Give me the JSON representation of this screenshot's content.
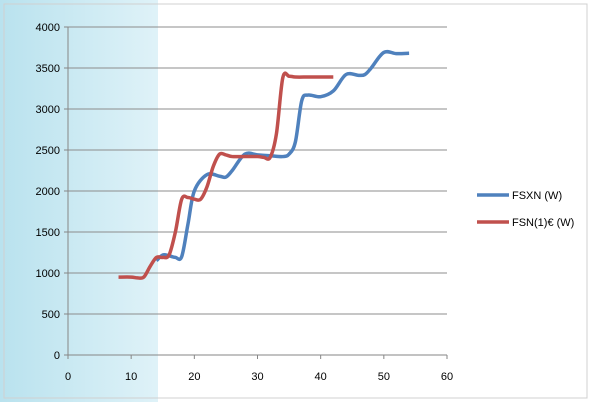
{
  "chart_data": {
    "type": "line",
    "title": "",
    "xlabel": "",
    "ylabel": "",
    "xlim": [
      0,
      60
    ],
    "ylim": [
      0,
      4000
    ],
    "x_ticks": [
      0,
      10,
      20,
      30,
      40,
      50,
      60
    ],
    "y_ticks": [
      0,
      500,
      1000,
      1500,
      2000,
      2500,
      3000,
      3500,
      4000
    ],
    "grid": "horizontal",
    "legend_position": "right",
    "series": [
      {
        "name": "FSXN (W)",
        "color": "#4f81bd",
        "points": [
          [
            14,
            1150
          ],
          [
            15,
            1220
          ],
          [
            16,
            1210
          ],
          [
            17,
            1190
          ],
          [
            18,
            1200
          ],
          [
            19,
            1600
          ],
          [
            20,
            2000
          ],
          [
            22,
            2200
          ],
          [
            24,
            2180
          ],
          [
            25,
            2170
          ],
          [
            26,
            2250
          ],
          [
            28,
            2450
          ],
          [
            30,
            2440
          ],
          [
            32,
            2430
          ],
          [
            34,
            2420
          ],
          [
            35,
            2450
          ],
          [
            36,
            2600
          ],
          [
            37,
            3100
          ],
          [
            38,
            3170
          ],
          [
            40,
            3150
          ],
          [
            42,
            3220
          ],
          [
            44,
            3420
          ],
          [
            46,
            3410
          ],
          [
            47,
            3420
          ],
          [
            48,
            3500
          ],
          [
            50,
            3690
          ],
          [
            52,
            3675
          ],
          [
            54,
            3680
          ]
        ]
      },
      {
        "name": "FSN(1)€ (W)",
        "color": "#c0504d",
        "points": [
          [
            8,
            950
          ],
          [
            10,
            950
          ],
          [
            11,
            940
          ],
          [
            12,
            950
          ],
          [
            13,
            1080
          ],
          [
            14,
            1190
          ],
          [
            15,
            1190
          ],
          [
            16,
            1220
          ],
          [
            17,
            1500
          ],
          [
            18,
            1900
          ],
          [
            19,
            1920
          ],
          [
            20,
            1900
          ],
          [
            21,
            1900
          ],
          [
            22,
            2050
          ],
          [
            23,
            2300
          ],
          [
            24,
            2450
          ],
          [
            25,
            2440
          ],
          [
            26,
            2420
          ],
          [
            28,
            2420
          ],
          [
            30,
            2420
          ],
          [
            31,
            2410
          ],
          [
            32,
            2410
          ],
          [
            33,
            2700
          ],
          [
            34,
            3380
          ],
          [
            35,
            3400
          ],
          [
            36,
            3390
          ],
          [
            38,
            3390
          ],
          [
            40,
            3390
          ],
          [
            42,
            3390
          ]
        ]
      }
    ]
  }
}
